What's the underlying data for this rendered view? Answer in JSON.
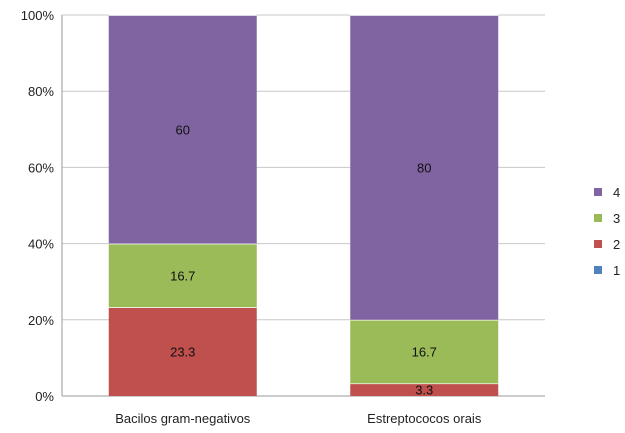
{
  "chart_data": {
    "type": "bar",
    "stacked": "percent",
    "categories": [
      "Bacilos gram-negativos",
      "Estreptococos orais"
    ],
    "series": [
      {
        "name": "1",
        "values": [
          0,
          0
        ],
        "color": "#4f81bd"
      },
      {
        "name": "2",
        "values": [
          23.3,
          3.3
        ],
        "color": "#c0504d"
      },
      {
        "name": "3",
        "values": [
          16.7,
          16.7
        ],
        "color": "#9bbb59"
      },
      {
        "name": "4",
        "values": [
          60,
          80
        ],
        "color": "#8064a2"
      }
    ],
    "data_labels": [
      [
        "",
        "23.3",
        "16.7",
        "60"
      ],
      [
        "",
        "3.3",
        "16.7",
        "80"
      ]
    ],
    "y_ticks": [
      "0%",
      "20%",
      "40%",
      "60%",
      "80%",
      "100%"
    ],
    "ylim": [
      0,
      100
    ],
    "grid": true,
    "legend_position": "right",
    "legend_order": [
      "4",
      "3",
      "2",
      "1"
    ]
  }
}
